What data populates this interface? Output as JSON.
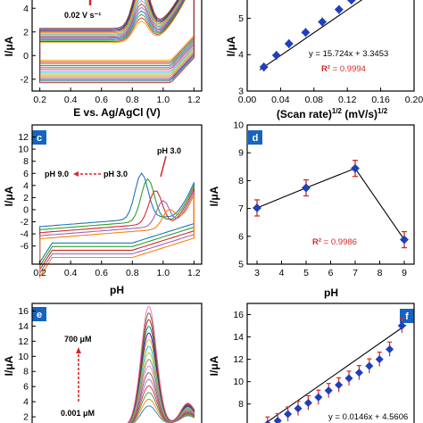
{
  "chart_data": [
    {
      "panel": "a",
      "type": "line",
      "xlabel": "E vs. Ag/AgCl (V)",
      "ylabel": "I/μA",
      "xlim": [
        0.15,
        1.25
      ],
      "xticks": [
        0.2,
        0.4,
        0.6,
        0.8,
        1.0,
        1.2
      ],
      "xtick_labels": [
        "0.2",
        "0.4",
        "0.6",
        "0.8",
        "1.0",
        "1.2"
      ],
      "ylim": [
        -3,
        5
      ],
      "yticks": [
        -2,
        0,
        2,
        4
      ],
      "ytick_labels": [
        "-2",
        "0",
        "2",
        "4"
      ],
      "annotations": [
        {
          "text": "0.02 V s⁻¹"
        }
      ],
      "curve_count": 14,
      "curve_colors": [
        "#e6a817",
        "#d62728",
        "#2ca02c",
        "#1f77b4",
        "#9467bd",
        "#8c564b",
        "#e377c2",
        "#17becf",
        "#bcbd22",
        "#ff7f0e",
        "#7f7f7f",
        "#4b0082",
        "#008080",
        "#b22222"
      ]
    },
    {
      "panel": "b",
      "type": "scatter",
      "xlabel": "(Scan rate)",
      "xlabel_sup": "1/2",
      "xlabel_units": "(mV/s)",
      "xlabel_units_sup": "1/2",
      "ylabel": "I/μA",
      "xlim": [
        0,
        0.2
      ],
      "xticks": [
        0.0,
        0.04,
        0.08,
        0.12,
        0.16,
        0.2
      ],
      "xtick_labels": [
        "0.00",
        "0.04",
        "0.08",
        "0.12",
        "0.16",
        "0.20"
      ],
      "ylim": [
        3,
        5.6
      ],
      "yticks": [
        3,
        4,
        5
      ],
      "ytick_labels": [
        "3",
        "4",
        "5"
      ],
      "x": [
        0.02,
        0.035,
        0.05,
        0.07,
        0.09,
        0.11,
        0.125,
        0.14
      ],
      "y": [
        3.66,
        3.98,
        4.3,
        4.61,
        4.9,
        5.24,
        5.5,
        5.72
      ],
      "equation": "y = 15.724x + 3.3453",
      "r2_label": "R²",
      "r2_value": " = 0.9994"
    },
    {
      "panel": "c",
      "type": "line",
      "xlabel": "pH",
      "ylabel": "I/μA",
      "xlim": [
        0.15,
        1.25
      ],
      "xticks": [
        0.2,
        0.4,
        0.6,
        0.8,
        1.0,
        1.2
      ],
      "xtick_labels": [
        "0.2",
        "0.4",
        "0.6",
        "0.8",
        "1.0",
        "1.2"
      ],
      "ylim": [
        -9,
        14
      ],
      "yticks": [
        -6,
        -4,
        -2,
        0,
        2,
        4,
        6,
        8,
        10,
        12
      ],
      "ytick_labels": [
        "-6",
        "-4",
        "-2",
        "0",
        "2",
        "4",
        "6",
        "8",
        "10",
        "12"
      ],
      "annotations": [
        {
          "text": "pH 3.0"
        },
        {
          "text": "pH 9.0"
        },
        {
          "text": "pH 3.0"
        }
      ],
      "curve_colors": [
        "#1f77b4",
        "#2ca02c",
        "#d62728",
        "#9467bd",
        "#ff7f0e"
      ]
    },
    {
      "panel": "d",
      "type": "scatter",
      "xlabel": "pH",
      "ylabel": "I/μA",
      "xlim": [
        2.6,
        9.4
      ],
      "xticks": [
        3,
        4,
        5,
        6,
        7,
        8,
        9
      ],
      "xtick_labels": [
        "3",
        "4",
        "5",
        "6",
        "7",
        "8",
        "9"
      ],
      "ylim": [
        5,
        10
      ],
      "yticks": [
        5,
        6,
        7,
        8,
        9,
        10
      ],
      "ytick_labels": [
        "5",
        "6",
        "7",
        "8",
        "9",
        "10"
      ],
      "x": [
        3,
        5,
        7,
        9
      ],
      "y": [
        7.02,
        7.74,
        8.44,
        5.88
      ],
      "r2_label": "R²",
      "r2_value": " = 0.9986"
    },
    {
      "panel": "e",
      "type": "line",
      "ylabel": "I/μA",
      "xlim": [
        0.15,
        1.0
      ],
      "ylim": [
        0,
        17
      ],
      "yticks": [
        2,
        4,
        6,
        8,
        10,
        12,
        14,
        16
      ],
      "ytick_labels": [
        "2",
        "4",
        "6",
        "8",
        "10",
        "12",
        "14",
        "16"
      ],
      "annotations": [
        {
          "text": "700 μM"
        },
        {
          "text": "0.001 μM"
        }
      ],
      "curve_colors": [
        "#1f77b4",
        "#ff7f0e",
        "#2ca02c",
        "#d62728",
        "#9467bd",
        "#8c564b",
        "#e377c2",
        "#7f7f7f",
        "#bcbd22",
        "#17becf",
        "#e6a817",
        "#4b0082",
        "#008080",
        "#b22222",
        "#556b2f",
        "#ff69b4"
      ]
    },
    {
      "panel": "f",
      "type": "scatter",
      "ylabel": "I/μA",
      "xlim": [
        -60,
        760
      ],
      "ylim": [
        5.5,
        17
      ],
      "yticks": [
        6,
        8,
        10,
        12,
        14,
        16
      ],
      "ytick_labels": [
        "6",
        "8",
        "10",
        "12",
        "14",
        "16"
      ],
      "x": [
        40,
        90,
        140,
        190,
        240,
        290,
        340,
        390,
        440,
        490,
        540,
        590,
        640,
        700
      ],
      "y": [
        6.2,
        6.5,
        7.1,
        7.6,
        8.1,
        8.6,
        9.2,
        9.7,
        10.3,
        10.8,
        11.4,
        12.0,
        12.9,
        15.0
      ],
      "equation": "y = 0.0146x + 4.5606"
    }
  ]
}
